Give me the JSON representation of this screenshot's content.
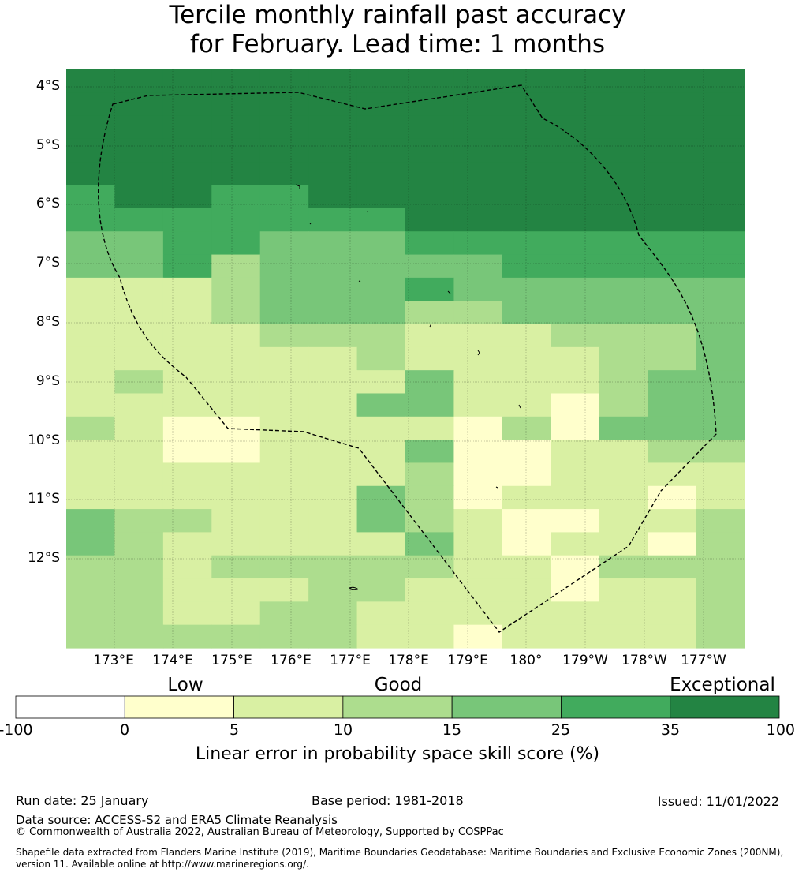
{
  "title": {
    "line1": "Tercile monthly rainfall past accuracy",
    "line2": "for February. Lead time: 1 months"
  },
  "map": {
    "lat_labels": [
      "4°S",
      "5°S",
      "6°S",
      "7°S",
      "8°S",
      "9°S",
      "10°S",
      "11°S",
      "12°S"
    ],
    "lon_labels": [
      "173°E",
      "174°E",
      "175°E",
      "176°E",
      "177°E",
      "178°E",
      "179°E",
      "180°",
      "179°W",
      "178°W",
      "177°W"
    ],
    "skill_legend_categories": [
      "-100 to 0",
      "0 to 5",
      "5 to 10",
      "10 to 15",
      "15 to 25",
      "25 to 35",
      "35 to 100"
    ],
    "grid_rows": [
      "66666666666666",
      "66666666666666",
      "66666666666666",
      "66666666666666",
      "66666666666666",
      "56655666666666",
      "55555556666666",
      "44554445555555",
      "44534444455555",
      "22234445444444",
      "22234443344444",
      "22223332223334",
      "22222232222334",
      "23222224222344",
      "22222244221344",
      "32112222131444",
      "22112224112233",
      "22222223112222",
      "22222243122212",
      "43322243211223",
      "43222224212213",
      "33233333221333",
      "33222332221223",
      "33223322222223",
      "33333322122223"
    ]
  },
  "colorbar": {
    "category_labels": [
      "Low",
      "Good",
      "Exceptional"
    ],
    "bins": [
      {
        "from": -100,
        "to": 0,
        "color": "#ffffff"
      },
      {
        "from": 0,
        "to": 5,
        "color": "#ffffcc"
      },
      {
        "from": 5,
        "to": 10,
        "color": "#d9f0a3"
      },
      {
        "from": 10,
        "to": 15,
        "color": "#addd8e"
      },
      {
        "from": 15,
        "to": 25,
        "color": "#78c679"
      },
      {
        "from": 25,
        "to": 35,
        "color": "#41ab5d"
      },
      {
        "from": 35,
        "to": 100,
        "color": "#238443"
      }
    ],
    "ticks": [
      "-100",
      "0",
      "5",
      "10",
      "15",
      "25",
      "35",
      "100"
    ],
    "axis_label": "Linear error in probability space skill score (%)"
  },
  "footer": {
    "run_date": "Run date: 25 January",
    "base_period": "Base period: 1981-2018",
    "issued": "Issued: 11/01/2022",
    "data_source": "Data source: ACCESS-S2 and ERA5 Climate Reanalysis",
    "copyright": "© Commonwealth of Australia 2022, Australian Bureau of Meteorology, Supported by COSPPac",
    "shapefile": "Shapefile data extracted from Flanders Marine Institute (2019), Maritime Boundaries Geodatabase: Maritime Boundaries and Exclusive Economic Zones (200NM), version 11. Available online at http://www.marineregions.org/."
  }
}
